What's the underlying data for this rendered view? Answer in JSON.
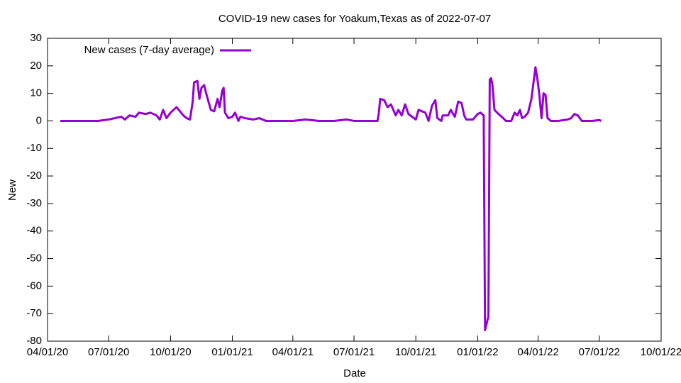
{
  "chart_data": {
    "type": "line",
    "title": "COVID-19 new cases for Yoakum,Texas as of 2022-07-07",
    "xlabel": "Date",
    "ylabel": "New",
    "xlim": [
      "2020-04-01",
      "2022-10-01"
    ],
    "xticks": [
      {
        "value": "2020-04-01",
        "label": "04/01/20"
      },
      {
        "value": "2020-07-01",
        "label": "07/01/20"
      },
      {
        "value": "2020-10-01",
        "label": "10/01/20"
      },
      {
        "value": "2021-01-01",
        "label": "01/01/21"
      },
      {
        "value": "2021-04-01",
        "label": "04/01/21"
      },
      {
        "value": "2021-07-01",
        "label": "07/01/21"
      },
      {
        "value": "2021-10-01",
        "label": "10/01/21"
      },
      {
        "value": "2022-01-01",
        "label": "01/01/22"
      },
      {
        "value": "2022-04-01",
        "label": "04/01/22"
      },
      {
        "value": "2022-07-01",
        "label": "07/01/22"
      },
      {
        "value": "2022-10-01",
        "label": "10/01/22"
      }
    ],
    "ylim": [
      -80,
      30
    ],
    "yticks": [
      -80,
      -70,
      -60,
      -50,
      -40,
      -30,
      -20,
      -10,
      0,
      10,
      20,
      30
    ],
    "legend": "top-left",
    "series": [
      {
        "name": "New cases (7-day average)",
        "color": "#9400d3",
        "x": [
          "2020-04-20",
          "2020-05-01",
          "2020-05-15",
          "2020-06-01",
          "2020-06-15",
          "2020-07-01",
          "2020-07-10",
          "2020-07-20",
          "2020-07-25",
          "2020-08-01",
          "2020-08-10",
          "2020-08-15",
          "2020-08-25",
          "2020-09-01",
          "2020-09-10",
          "2020-09-15",
          "2020-09-20",
          "2020-09-25",
          "2020-10-01",
          "2020-10-10",
          "2020-10-15",
          "2020-10-20",
          "2020-10-25",
          "2020-10-30",
          "2020-11-03",
          "2020-11-05",
          "2020-11-10",
          "2020-11-13",
          "2020-11-16",
          "2020-11-20",
          "2020-11-23",
          "2020-11-30",
          "2020-12-05",
          "2020-12-10",
          "2020-12-13",
          "2020-12-17",
          "2020-12-19",
          "2020-12-21",
          "2020-12-26",
          "2021-01-01",
          "2021-01-05",
          "2021-01-10",
          "2021-01-13",
          "2021-01-20",
          "2021-02-01",
          "2021-02-10",
          "2021-02-20",
          "2021-03-10",
          "2021-04-01",
          "2021-04-20",
          "2021-05-10",
          "2021-06-01",
          "2021-06-20",
          "2021-07-01",
          "2021-08-05",
          "2021-08-07",
          "2021-08-09",
          "2021-08-15",
          "2021-08-20",
          "2021-08-25",
          "2021-09-01",
          "2021-09-05",
          "2021-09-10",
          "2021-09-15",
          "2021-09-20",
          "2021-10-01",
          "2021-10-05",
          "2021-10-15",
          "2021-10-20",
          "2021-10-25",
          "2021-10-30",
          "2021-11-02",
          "2021-11-08",
          "2021-11-10",
          "2021-11-18",
          "2021-11-22",
          "2021-11-28",
          "2021-12-03",
          "2021-12-08",
          "2021-12-12",
          "2021-12-15",
          "2021-12-25",
          "2022-01-01",
          "2022-01-05",
          "2022-01-10",
          "2022-01-12",
          "2022-01-15",
          "2022-01-17",
          "2022-01-19",
          "2022-01-21",
          "2022-01-23",
          "2022-01-26",
          "2022-02-01",
          "2022-02-08",
          "2022-02-12",
          "2022-02-20",
          "2022-02-25",
          "2022-03-01",
          "2022-03-05",
          "2022-03-08",
          "2022-03-12",
          "2022-03-17",
          "2022-03-22",
          "2022-03-28",
          "2022-03-31",
          "2022-04-03",
          "2022-04-06",
          "2022-04-09",
          "2022-04-12",
          "2022-04-15",
          "2022-04-20",
          "2022-05-01",
          "2022-05-15",
          "2022-05-20",
          "2022-05-25",
          "2022-05-30",
          "2022-06-05",
          "2022-06-20",
          "2022-07-01",
          "2022-07-04"
        ],
        "values": [
          0,
          0,
          0,
          0,
          0,
          0.5,
          1,
          1.5,
          0.5,
          2,
          1.5,
          3,
          2.5,
          3,
          2,
          0.5,
          4,
          1,
          3,
          5,
          3.5,
          2,
          1,
          0.5,
          7,
          14,
          14.5,
          8,
          12,
          13,
          10,
          4,
          3.5,
          8,
          5,
          11,
          12,
          3,
          1,
          1.5,
          3,
          0,
          1.5,
          1,
          0.5,
          1,
          0,
          0,
          0,
          0.5,
          0,
          0,
          0.5,
          0,
          0,
          3,
          8,
          7.5,
          5,
          6,
          2,
          4,
          2,
          6,
          2.5,
          0.5,
          4,
          3,
          0,
          5.5,
          7.5,
          1,
          0,
          2,
          2,
          4,
          1.5,
          7,
          6.5,
          2,
          0.5,
          0.5,
          2.5,
          3,
          2,
          -76,
          -73,
          -71,
          15,
          15.5,
          13,
          4,
          2.5,
          1,
          0,
          0,
          3,
          2,
          4,
          1,
          1.5,
          3,
          8,
          19.5,
          15,
          9,
          1,
          10,
          9.5,
          1,
          0,
          0,
          0.5,
          1,
          2.5,
          2,
          0,
          0,
          0.3,
          0
        ]
      }
    ]
  }
}
